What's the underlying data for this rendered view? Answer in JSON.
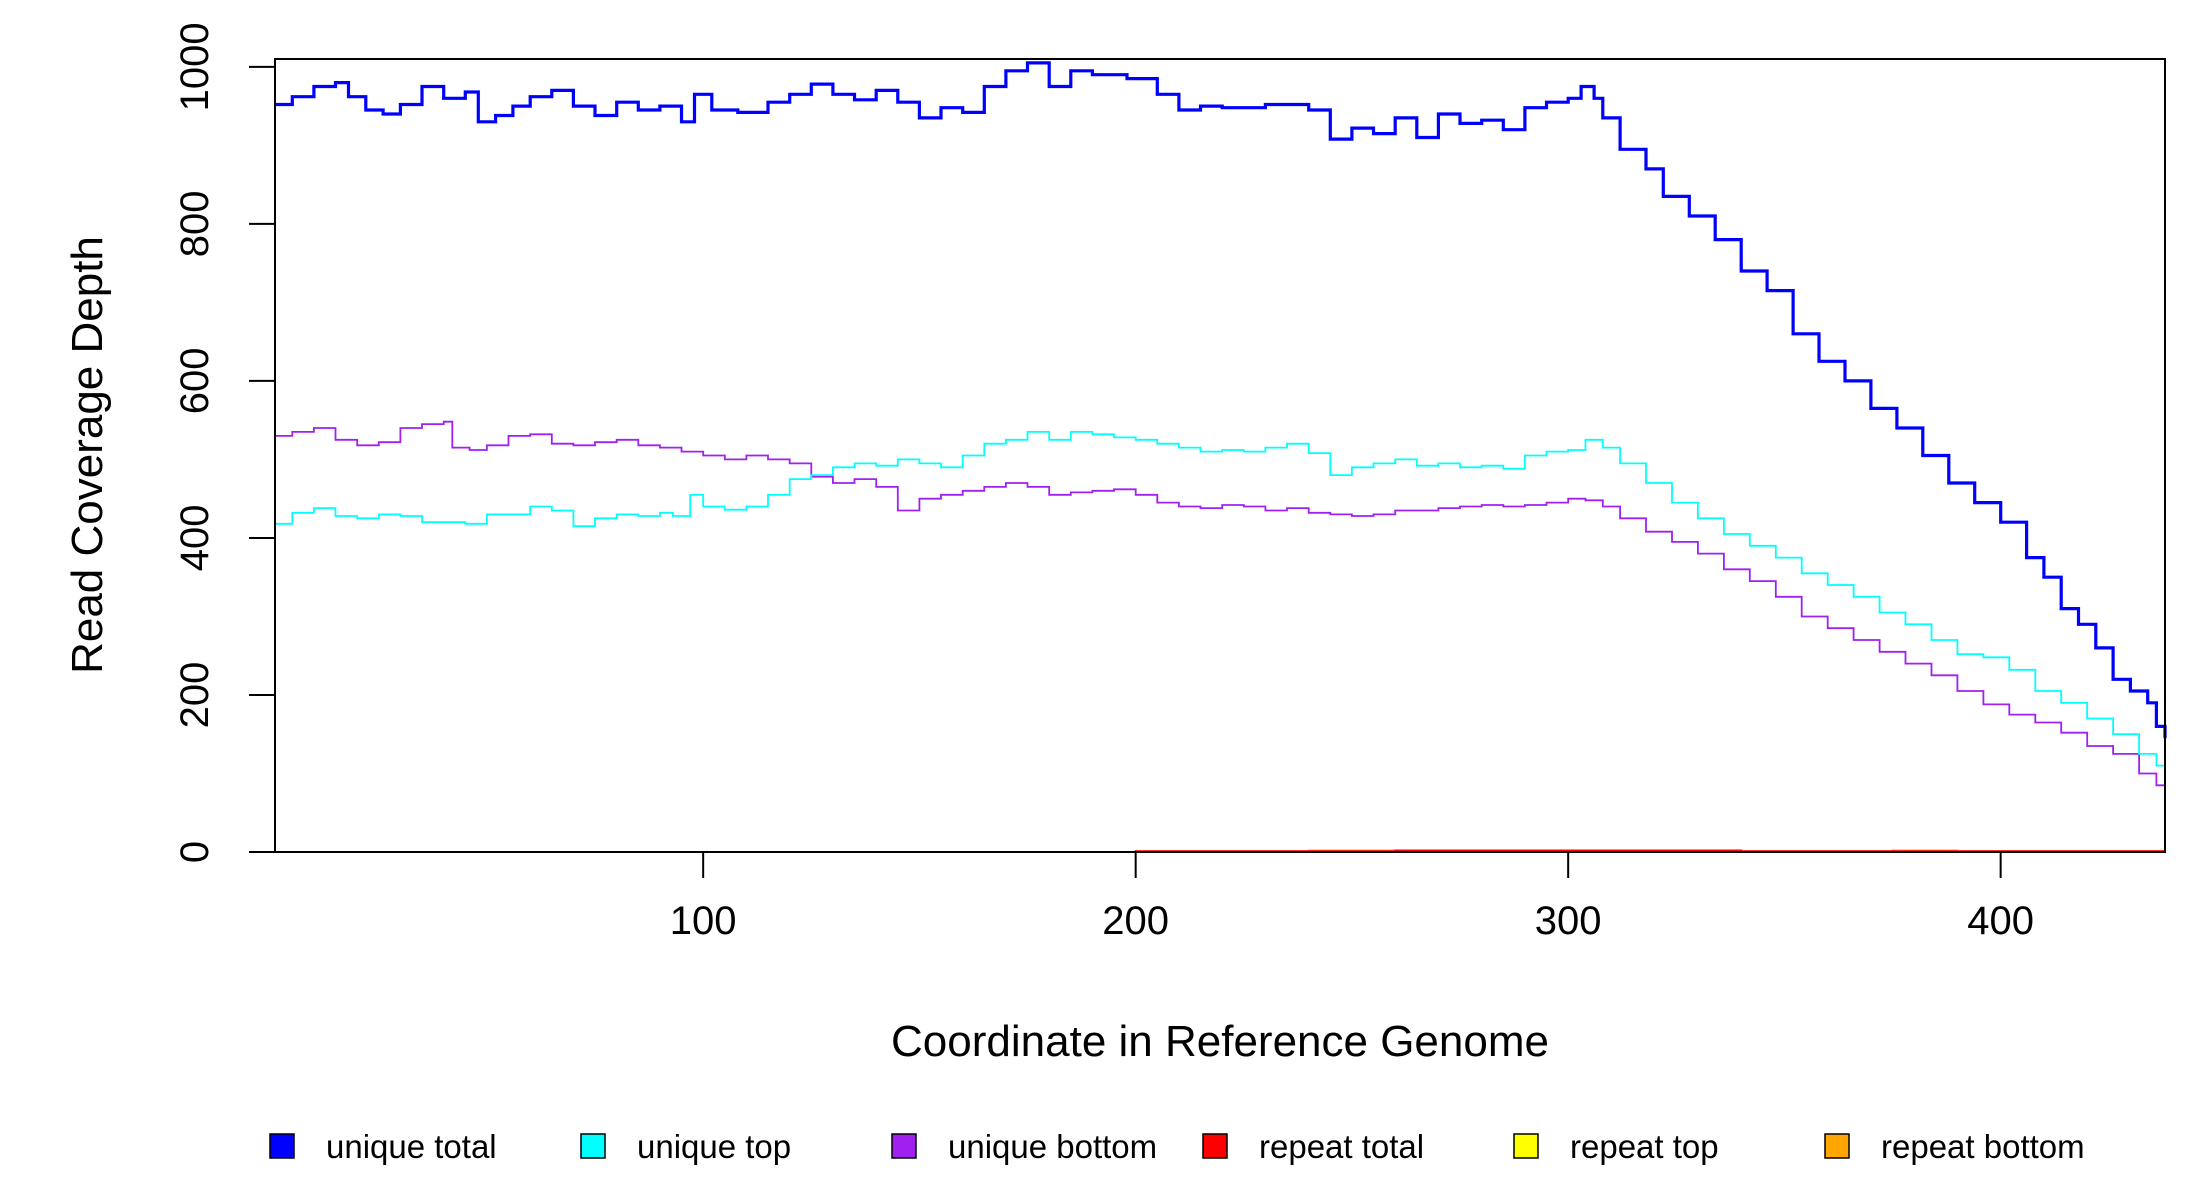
{
  "chart_data": {
    "type": "line",
    "title": "",
    "xlabel": "Coordinate in Reference Genome",
    "ylabel": "Read Coverage Depth",
    "xlim": [
      1,
      438
    ],
    "ylim": [
      0,
      1010
    ],
    "xticks": [
      100,
      200,
      300,
      400
    ],
    "yticks": [
      0,
      200,
      400,
      600,
      800,
      1000
    ],
    "grid": false,
    "legend_position": "bottom",
    "step": true,
    "series": [
      {
        "name": "unique total",
        "color": "#0000FF",
        "points": [
          [
            1,
            952
          ],
          [
            5,
            962
          ],
          [
            10,
            975
          ],
          [
            15,
            980
          ],
          [
            18,
            962
          ],
          [
            22,
            945
          ],
          [
            26,
            940
          ],
          [
            30,
            952
          ],
          [
            35,
            975
          ],
          [
            40,
            960
          ],
          [
            45,
            968
          ],
          [
            48,
            930
          ],
          [
            52,
            938
          ],
          [
            56,
            950
          ],
          [
            60,
            962
          ],
          [
            65,
            970
          ],
          [
            70,
            950
          ],
          [
            75,
            938
          ],
          [
            80,
            955
          ],
          [
            85,
            945
          ],
          [
            90,
            950
          ],
          [
            95,
            930
          ],
          [
            98,
            965
          ],
          [
            102,
            945
          ],
          [
            108,
            942
          ],
          [
            115,
            955
          ],
          [
            120,
            965
          ],
          [
            125,
            978
          ],
          [
            130,
            965
          ],
          [
            135,
            958
          ],
          [
            140,
            970
          ],
          [
            145,
            955
          ],
          [
            150,
            935
          ],
          [
            155,
            948
          ],
          [
            160,
            942
          ],
          [
            165,
            975
          ],
          [
            170,
            995
          ],
          [
            175,
            1005
          ],
          [
            180,
            975
          ],
          [
            185,
            995
          ],
          [
            190,
            990
          ],
          [
            198,
            985
          ],
          [
            205,
            965
          ],
          [
            210,
            945
          ],
          [
            215,
            950
          ],
          [
            220,
            948
          ],
          [
            230,
            952
          ],
          [
            240,
            945
          ],
          [
            245,
            908
          ],
          [
            250,
            922
          ],
          [
            255,
            915
          ],
          [
            260,
            935
          ],
          [
            265,
            910
          ],
          [
            270,
            940
          ],
          [
            275,
            928
          ],
          [
            280,
            932
          ],
          [
            285,
            920
          ],
          [
            290,
            948
          ],
          [
            295,
            955
          ],
          [
            300,
            960
          ],
          [
            303,
            975
          ],
          [
            306,
            960
          ],
          [
            308,
            935
          ],
          [
            312,
            895
          ],
          [
            318,
            870
          ],
          [
            322,
            835
          ],
          [
            328,
            810
          ],
          [
            334,
            780
          ],
          [
            340,
            740
          ],
          [
            346,
            715
          ],
          [
            352,
            660
          ],
          [
            358,
            625
          ],
          [
            364,
            600
          ],
          [
            370,
            565
          ],
          [
            376,
            540
          ],
          [
            382,
            505
          ],
          [
            388,
            470
          ],
          [
            394,
            445
          ],
          [
            400,
            420
          ],
          [
            406,
            375
          ],
          [
            410,
            350
          ],
          [
            414,
            310
          ],
          [
            418,
            290
          ],
          [
            422,
            260
          ],
          [
            426,
            220
          ],
          [
            430,
            205
          ],
          [
            434,
            190
          ],
          [
            436,
            160
          ],
          [
            438,
            145
          ]
        ]
      },
      {
        "name": "unique top",
        "color": "#00FFFF",
        "points": [
          [
            1,
            418
          ],
          [
            5,
            432
          ],
          [
            10,
            438
          ],
          [
            15,
            428
          ],
          [
            20,
            425
          ],
          [
            25,
            430
          ],
          [
            30,
            428
          ],
          [
            35,
            420
          ],
          [
            40,
            420
          ],
          [
            45,
            418
          ],
          [
            50,
            430
          ],
          [
            55,
            430
          ],
          [
            60,
            440
          ],
          [
            65,
            435
          ],
          [
            70,
            415
          ],
          [
            75,
            425
          ],
          [
            80,
            430
          ],
          [
            85,
            428
          ],
          [
            90,
            432
          ],
          [
            93,
            428
          ],
          [
            97,
            455
          ],
          [
            100,
            440
          ],
          [
            105,
            436
          ],
          [
            110,
            440
          ],
          [
            115,
            455
          ],
          [
            120,
            475
          ],
          [
            125,
            480
          ],
          [
            130,
            490
          ],
          [
            135,
            495
          ],
          [
            140,
            492
          ],
          [
            145,
            500
          ],
          [
            150,
            495
          ],
          [
            155,
            490
          ],
          [
            160,
            505
          ],
          [
            165,
            520
          ],
          [
            170,
            525
          ],
          [
            175,
            535
          ],
          [
            180,
            525
          ],
          [
            185,
            535
          ],
          [
            190,
            532
          ],
          [
            195,
            528
          ],
          [
            200,
            525
          ],
          [
            205,
            520
          ],
          [
            210,
            515
          ],
          [
            215,
            510
          ],
          [
            220,
            512
          ],
          [
            225,
            510
          ],
          [
            230,
            515
          ],
          [
            235,
            520
          ],
          [
            240,
            508
          ],
          [
            245,
            480
          ],
          [
            250,
            490
          ],
          [
            255,
            495
          ],
          [
            260,
            500
          ],
          [
            265,
            492
          ],
          [
            270,
            495
          ],
          [
            275,
            490
          ],
          [
            280,
            492
          ],
          [
            285,
            488
          ],
          [
            290,
            505
          ],
          [
            295,
            510
          ],
          [
            300,
            512
          ],
          [
            304,
            525
          ],
          [
            308,
            515
          ],
          [
            312,
            495
          ],
          [
            318,
            470
          ],
          [
            324,
            445
          ],
          [
            330,
            425
          ],
          [
            336,
            405
          ],
          [
            342,
            390
          ],
          [
            348,
            375
          ],
          [
            354,
            355
          ],
          [
            360,
            340
          ],
          [
            366,
            325
          ],
          [
            372,
            305
          ],
          [
            378,
            290
          ],
          [
            384,
            270
          ],
          [
            390,
            252
          ],
          [
            396,
            248
          ],
          [
            402,
            232
          ],
          [
            408,
            205
          ],
          [
            414,
            190
          ],
          [
            420,
            170
          ],
          [
            426,
            150
          ],
          [
            432,
            125
          ],
          [
            436,
            110
          ],
          [
            438,
            80
          ]
        ]
      },
      {
        "name": "unique bottom",
        "color": "#A020F0",
        "points": [
          [
            1,
            530
          ],
          [
            5,
            535
          ],
          [
            10,
            540
          ],
          [
            15,
            525
          ],
          [
            20,
            518
          ],
          [
            25,
            522
          ],
          [
            30,
            540
          ],
          [
            35,
            545
          ],
          [
            40,
            548
          ],
          [
            42,
            515
          ],
          [
            46,
            512
          ],
          [
            50,
            518
          ],
          [
            55,
            530
          ],
          [
            60,
            532
          ],
          [
            65,
            520
          ],
          [
            70,
            518
          ],
          [
            75,
            522
          ],
          [
            80,
            525
          ],
          [
            85,
            518
          ],
          [
            90,
            515
          ],
          [
            95,
            510
          ],
          [
            100,
            505
          ],
          [
            105,
            500
          ],
          [
            110,
            505
          ],
          [
            115,
            500
          ],
          [
            120,
            495
          ],
          [
            125,
            478
          ],
          [
            130,
            470
          ],
          [
            135,
            475
          ],
          [
            140,
            465
          ],
          [
            145,
            435
          ],
          [
            150,
            450
          ],
          [
            155,
            455
          ],
          [
            160,
            460
          ],
          [
            165,
            465
          ],
          [
            170,
            470
          ],
          [
            175,
            465
          ],
          [
            180,
            455
          ],
          [
            185,
            458
          ],
          [
            190,
            460
          ],
          [
            195,
            462
          ],
          [
            200,
            455
          ],
          [
            205,
            445
          ],
          [
            210,
            440
          ],
          [
            215,
            438
          ],
          [
            220,
            442
          ],
          [
            225,
            440
          ],
          [
            230,
            435
          ],
          [
            235,
            438
          ],
          [
            240,
            432
          ],
          [
            245,
            430
          ],
          [
            250,
            428
          ],
          [
            255,
            430
          ],
          [
            260,
            435
          ],
          [
            265,
            435
          ],
          [
            270,
            438
          ],
          [
            275,
            440
          ],
          [
            280,
            442
          ],
          [
            285,
            440
          ],
          [
            290,
            442
          ],
          [
            295,
            445
          ],
          [
            300,
            450
          ],
          [
            304,
            448
          ],
          [
            308,
            440
          ],
          [
            312,
            425
          ],
          [
            318,
            408
          ],
          [
            324,
            395
          ],
          [
            330,
            380
          ],
          [
            336,
            360
          ],
          [
            342,
            345
          ],
          [
            348,
            325
          ],
          [
            354,
            300
          ],
          [
            360,
            285
          ],
          [
            366,
            270
          ],
          [
            372,
            255
          ],
          [
            378,
            240
          ],
          [
            384,
            225
          ],
          [
            390,
            205
          ],
          [
            396,
            188
          ],
          [
            402,
            175
          ],
          [
            408,
            165
          ],
          [
            414,
            152
          ],
          [
            420,
            135
          ],
          [
            426,
            125
          ],
          [
            432,
            100
          ],
          [
            436,
            85
          ],
          [
            438,
            65
          ]
        ]
      },
      {
        "name": "repeat total",
        "color": "#FF0000",
        "points": [
          [
            1,
            0
          ],
          [
            200,
            1
          ],
          [
            260,
            2
          ],
          [
            300,
            2
          ],
          [
            340,
            1
          ],
          [
            438,
            0
          ]
        ]
      },
      {
        "name": "repeat top",
        "color": "#FFFF00",
        "points": [
          [
            1,
            0
          ],
          [
            438,
            0
          ]
        ]
      },
      {
        "name": "repeat bottom",
        "color": "#FFA500",
        "points": [
          [
            1,
            0
          ],
          [
            200,
            1
          ],
          [
            240,
            2
          ],
          [
            265,
            1
          ],
          [
            300,
            2
          ],
          [
            340,
            1
          ],
          [
            375,
            2
          ],
          [
            390,
            1
          ],
          [
            438,
            0
          ]
        ]
      }
    ]
  }
}
